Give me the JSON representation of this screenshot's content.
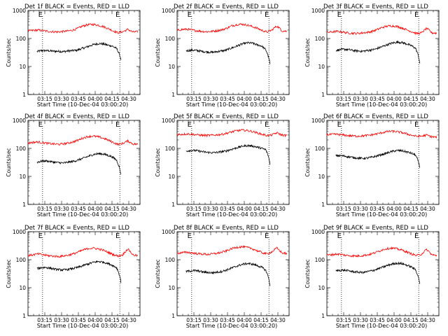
{
  "chart_data": [
    {
      "type": "line",
      "title": "Det 1f BLACK = Events, RED = LLD",
      "xlabel": "Start Time (10-Dec-04 03:00:20)",
      "ylabel": "Counts/sec",
      "yscale": "log",
      "ylim": [
        1,
        1000
      ],
      "xlim": [
        "03:00",
        "04:40"
      ],
      "y_ticks": [
        "1",
        "10",
        "100",
        "1000"
      ],
      "x_ticks": [
        "03:15",
        "03:30",
        "03:45",
        "04:00",
        "04:15",
        "04:30"
      ],
      "markers": [
        {
          "label": "E",
          "time": "03:13"
        },
        {
          "label": "E",
          "time": "04:22"
        }
      ],
      "series": [
        {
          "name": "BLACK",
          "color": "#000000",
          "start": "03:08",
          "end": "04:23",
          "values": [
            34,
            37,
            37,
            36,
            35,
            35,
            34,
            36,
            37,
            38,
            43,
            48,
            55,
            62,
            66,
            64,
            58,
            54,
            44,
            18
          ]
        },
        {
          "name": "RED",
          "color": "#ff0000",
          "start": "03:00",
          "end": "04:38",
          "values": [
            185,
            195,
            200,
            190,
            180,
            175,
            172,
            178,
            185,
            200,
            230,
            280,
            310,
            320,
            300,
            270,
            230,
            190,
            160,
            175,
            210,
            170,
            175
          ]
        }
      ]
    },
    {
      "type": "line",
      "title": "Det 2f BLACK = Events, RED = LLD",
      "xlabel": "Start Time (10-Dec-04 03:00:20)",
      "ylabel": "Counts/sec",
      "yscale": "log",
      "ylim": [
        1,
        1000
      ],
      "xlim": [
        "03:00",
        "04:40"
      ],
      "y_ticks": [
        "1",
        "10",
        "100",
        "1000"
      ],
      "x_ticks": [
        "03:15",
        "03:30",
        "03:45",
        "04:00",
        "04:15",
        "04:30"
      ],
      "markers": [
        {
          "label": "E",
          "time": "03:13"
        },
        {
          "label": "E",
          "time": "04:22"
        }
      ],
      "series": [
        {
          "name": "BLACK",
          "color": "#000000",
          "start": "03:08",
          "end": "04:23",
          "values": [
            36,
            38,
            38,
            36,
            34,
            33,
            32,
            34,
            36,
            38,
            44,
            50,
            58,
            66,
            70,
            68,
            60,
            55,
            40,
            12
          ]
        },
        {
          "name": "RED",
          "color": "#ff0000",
          "start": "03:00",
          "end": "04:38",
          "values": [
            195,
            210,
            215,
            200,
            190,
            180,
            175,
            180,
            190,
            205,
            235,
            285,
            315,
            325,
            305,
            270,
            235,
            195,
            170,
            200,
            280,
            190,
            180
          ]
        }
      ]
    },
    {
      "type": "line",
      "title": "Det 3f BLACK = Events, RED = LLD",
      "xlabel": "Start Time (10-Dec-04 03:00:20)",
      "ylabel": "Counts/sec",
      "yscale": "log",
      "ylim": [
        1,
        1000
      ],
      "xlim": [
        "03:00",
        "04:40"
      ],
      "y_ticks": [
        "1",
        "10",
        "100",
        "1000"
      ],
      "x_ticks": [
        "03:15",
        "03:30",
        "03:45",
        "04:00",
        "04:15",
        "04:30"
      ],
      "markers": [
        {
          "label": "E",
          "time": "03:13"
        },
        {
          "label": "E",
          "time": "04:22"
        }
      ],
      "series": [
        {
          "name": "BLACK",
          "color": "#000000",
          "start": "03:08",
          "end": "04:23",
          "values": [
            38,
            40,
            41,
            40,
            37,
            36,
            35,
            37,
            39,
            42,
            48,
            55,
            63,
            70,
            74,
            72,
            64,
            56,
            45,
            13
          ]
        },
        {
          "name": "RED",
          "color": "#ff0000",
          "start": "03:00",
          "end": "04:38",
          "values": [
            165,
            172,
            180,
            172,
            160,
            155,
            152,
            158,
            165,
            178,
            205,
            245,
            275,
            285,
            270,
            240,
            205,
            175,
            150,
            160,
            230,
            160,
            155
          ]
        }
      ]
    },
    {
      "type": "line",
      "title": "Det 4f BLACK = Events, RED = LLD",
      "xlabel": "Start Time (10-Dec-04 03:00:20)",
      "ylabel": "Counts/sec",
      "yscale": "log",
      "ylim": [
        1,
        1000
      ],
      "xlim": [
        "03:00",
        "04:40"
      ],
      "y_ticks": [
        "1",
        "10",
        "100",
        "1000"
      ],
      "x_ticks": [
        "03:15",
        "03:30",
        "03:45",
        "04:00",
        "04:15",
        "04:30"
      ],
      "markers": [
        {
          "label": "E",
          "time": "03:13"
        },
        {
          "label": "E",
          "time": "04:22"
        }
      ],
      "series": [
        {
          "name": "BLACK",
          "color": "#000000",
          "start": "03:08",
          "end": "04:23",
          "values": [
            32,
            35,
            36,
            34,
            32,
            31,
            30,
            32,
            34,
            37,
            42,
            48,
            55,
            62,
            65,
            63,
            57,
            50,
            38,
            11
          ]
        },
        {
          "name": "RED",
          "color": "#ff0000",
          "start": "03:00",
          "end": "04:38",
          "values": [
            155,
            165,
            170,
            160,
            150,
            145,
            140,
            145,
            155,
            170,
            195,
            235,
            265,
            275,
            260,
            235,
            200,
            165,
            140,
            150,
            185,
            145,
            140
          ]
        }
      ]
    },
    {
      "type": "line",
      "title": "Det 5f BLACK = Events, RED = LLD",
      "xlabel": "Start Time (10-Dec-04 03:00:20)",
      "ylabel": "Counts/sec",
      "yscale": "log",
      "ylim": [
        1,
        1000
      ],
      "xlim": [
        "03:00",
        "04:40"
      ],
      "y_ticks": [
        "1",
        "10",
        "100",
        "1000"
      ],
      "x_ticks": [
        "03:15",
        "03:30",
        "03:45",
        "04:00",
        "04:15",
        "04:30"
      ],
      "markers": [
        {
          "label": "E",
          "time": "03:13"
        },
        {
          "label": "E",
          "time": "04:22"
        }
      ],
      "series": [
        {
          "name": "BLACK",
          "color": "#000000",
          "start": "03:08",
          "end": "04:23",
          "values": [
            80,
            85,
            84,
            80,
            75,
            72,
            70,
            72,
            76,
            80,
            90,
            100,
            112,
            122,
            126,
            122,
            112,
            102,
            90,
            28
          ]
        },
        {
          "name": "RED",
          "color": "#ff0000",
          "start": "03:00",
          "end": "04:38",
          "values": [
            310,
            320,
            330,
            320,
            305,
            295,
            290,
            295,
            305,
            320,
            350,
            390,
            430,
            450,
            435,
            405,
            360,
            320,
            290,
            300,
            360,
            300,
            290
          ]
        }
      ]
    },
    {
      "type": "line",
      "title": "Det 6f BLACK = Events, RED = LLD",
      "xlabel": "Start Time (10-Dec-04 03:00:20)",
      "ylabel": "Counts/sec",
      "yscale": "log",
      "ylim": [
        1,
        1000
      ],
      "xlim": [
        "03:00",
        "04:40"
      ],
      "y_ticks": [
        "1",
        "10",
        "100",
        "1000"
      ],
      "x_ticks": [
        "03:15",
        "03:30",
        "03:45",
        "04:00",
        "04:15",
        "04:30"
      ],
      "markers": [
        {
          "label": "E",
          "time": "03:13"
        },
        {
          "label": "E",
          "time": "04:22"
        }
      ],
      "series": [
        {
          "name": "BLACK",
          "color": "#000000",
          "start": "03:08",
          "end": "04:23",
          "values": [
            55,
            55,
            53,
            50,
            47,
            45,
            44,
            45,
            48,
            52,
            58,
            64,
            72,
            80,
            84,
            82,
            75,
            68,
            58,
            20
          ]
        },
        {
          "name": "RED",
          "color": "#ff0000",
          "start": "03:00",
          "end": "04:38",
          "values": [
            310,
            315,
            320,
            305,
            290,
            280,
            275,
            280,
            290,
            305,
            330,
            365,
            395,
            410,
            395,
            370,
            330,
            295,
            270,
            275,
            300,
            260,
            250
          ]
        }
      ]
    },
    {
      "type": "line",
      "title": "Det 7f BLACK = Events, RED = LLD",
      "xlabel": "Start Time (10-Dec-04 03:00:20)",
      "ylabel": "Counts/sec",
      "yscale": "log",
      "ylim": [
        1,
        1000
      ],
      "xlim": [
        "03:00",
        "04:40"
      ],
      "y_ticks": [
        "1",
        "10",
        "100",
        "1000"
      ],
      "x_ticks": [
        "03:15",
        "03:30",
        "03:45",
        "04:00",
        "04:15",
        "04:30"
      ],
      "markers": [
        {
          "label": "E",
          "time": "03:13"
        },
        {
          "label": "E",
          "time": "04:22"
        }
      ],
      "series": [
        {
          "name": "BLACK",
          "color": "#000000",
          "start": "03:08",
          "end": "04:23",
          "values": [
            48,
            52,
            53,
            50,
            46,
            44,
            43,
            45,
            48,
            52,
            58,
            66,
            74,
            82,
            86,
            82,
            74,
            64,
            52,
            16
          ]
        },
        {
          "name": "RED",
          "color": "#ff0000",
          "start": "03:00",
          "end": "04:38",
          "values": [
            140,
            150,
            160,
            150,
            140,
            135,
            130,
            135,
            145,
            160,
            185,
            220,
            250,
            260,
            245,
            220,
            185,
            155,
            135,
            150,
            240,
            150,
            140
          ]
        }
      ]
    },
    {
      "type": "line",
      "title": "Det 8f BLACK = Events, RED = LLD",
      "xlabel": "Start Time (10-Dec-04 03:00:20)",
      "ylabel": "Counts/sec",
      "yscale": "log",
      "ylim": [
        1,
        1000
      ],
      "xlim": [
        "03:00",
        "04:40"
      ],
      "y_ticks": [
        "1",
        "10",
        "100",
        "1000"
      ],
      "x_ticks": [
        "03:15",
        "03:30",
        "03:45",
        "04:00",
        "04:15",
        "04:30"
      ],
      "markers": [
        {
          "label": "E",
          "time": "03:13"
        },
        {
          "label": "E",
          "time": "04:22"
        }
      ],
      "series": [
        {
          "name": "BLACK",
          "color": "#000000",
          "start": "03:08",
          "end": "04:23",
          "values": [
            38,
            40,
            41,
            39,
            36,
            35,
            34,
            36,
            38,
            42,
            48,
            55,
            63,
            70,
            73,
            70,
            62,
            55,
            42,
            12
          ]
        },
        {
          "name": "RED",
          "color": "#ff0000",
          "start": "03:00",
          "end": "04:38",
          "values": [
            170,
            178,
            185,
            175,
            165,
            160,
            155,
            160,
            170,
            185,
            210,
            250,
            280,
            290,
            275,
            250,
            210,
            180,
            160,
            190,
            260,
            175,
            165
          ]
        }
      ]
    },
    {
      "type": "line",
      "title": "Det 9f BLACK = Events, RED = LLD",
      "xlabel": "Start Time (10-Dec-04 03:00:20)",
      "ylabel": "Counts/sec",
      "yscale": "log",
      "ylim": [
        1,
        1000
      ],
      "xlim": [
        "03:00",
        "04:40"
      ],
      "y_ticks": [
        "1",
        "10",
        "100",
        "1000"
      ],
      "x_ticks": [
        "03:15",
        "03:30",
        "03:45",
        "04:00",
        "04:15",
        "04:30"
      ],
      "markers": [
        {
          "label": "E",
          "time": "03:13"
        },
        {
          "label": "E",
          "time": "04:22"
        }
      ],
      "series": [
        {
          "name": "BLACK",
          "color": "#000000",
          "start": "03:08",
          "end": "04:23",
          "values": [
            40,
            42,
            42,
            40,
            37,
            36,
            35,
            37,
            40,
            44,
            50,
            57,
            65,
            72,
            75,
            72,
            64,
            56,
            44,
            14
          ]
        },
        {
          "name": "RED",
          "color": "#ff0000",
          "start": "03:00",
          "end": "04:38",
          "values": [
            145,
            152,
            160,
            152,
            142,
            138,
            135,
            140,
            148,
            162,
            188,
            222,
            250,
            260,
            245,
            222,
            190,
            160,
            140,
            160,
            230,
            150,
            140
          ]
        }
      ]
    }
  ]
}
